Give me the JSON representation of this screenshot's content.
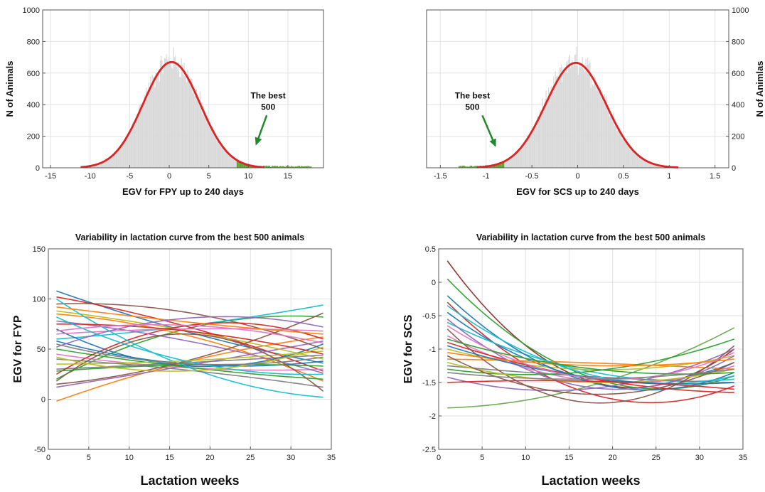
{
  "chart_data": [
    {
      "type": "bar",
      "xlabel": "EGV for FPY up to 240 days",
      "ylabel": "N of Animals",
      "xlim": [
        -16,
        19.5
      ],
      "ylim": [
        0,
        1000
      ],
      "xticks": [
        -15,
        -10,
        -5,
        0,
        5,
        10,
        15
      ],
      "yticks": [
        0,
        200,
        400,
        600,
        800,
        1000
      ],
      "grid": true,
      "histogram_range": [
        -11,
        18
      ],
      "normal_curve": {
        "mean": 0.3,
        "sd": 3.6,
        "peak": 670,
        "x_range": [
          -11.2,
          12
        ],
        "color": "#dd2222"
      },
      "highlight": {
        "x_range": [
          8.5,
          18
        ],
        "color": "#5aa02c"
      },
      "annotation": {
        "lines": [
          "The best",
          "500"
        ],
        "x": 12.5,
        "y": 440,
        "arrow_to": [
          11,
          150
        ],
        "arrow_color": "#1e8a2a"
      },
      "y_axis_side": "left",
      "colors": {
        "bars": "#d9d9d9",
        "curve": "#dd2222",
        "best": "#5aa02c"
      }
    },
    {
      "type": "bar",
      "xlabel": "EGV for SCS up to 240 days",
      "ylabel": "N of Animlas",
      "xlim": [
        -1.65,
        1.65
      ],
      "ylim": [
        0,
        1000
      ],
      "xticks": [
        -1.5,
        -1,
        -0.5,
        0,
        0.5,
        1,
        1.5
      ],
      "yticks": [
        0,
        200,
        400,
        600,
        800,
        1000
      ],
      "grid": true,
      "histogram_range": [
        -1.3,
        1.1
      ],
      "normal_curve": {
        "mean": -0.02,
        "sd": 0.33,
        "peak": 665,
        "x_range": [
          -1.1,
          1.1
        ],
        "color": "#dd2222"
      },
      "highlight": {
        "x_range": [
          -1.3,
          -0.8
        ],
        "color": "#5aa02c"
      },
      "annotation": {
        "lines": [
          "The best",
          "500"
        ],
        "x": -1.15,
        "y": 440,
        "arrow_to": [
          -0.9,
          140
        ],
        "arrow_color": "#1e8a2a"
      },
      "y_axis_side": "right",
      "colors": {
        "bars": "#d9d9d9",
        "curve": "#dd2222",
        "best": "#5aa02c"
      }
    },
    {
      "type": "line",
      "title": "Variability  in lactation curve from the best 500 animals",
      "xlabel": "Lactation weeks",
      "ylabel": "EGV for FYP",
      "xlim": [
        0,
        35
      ],
      "ylim": [
        -50,
        150
      ],
      "xticks": [
        0,
        5,
        10,
        15,
        20,
        25,
        30,
        35
      ],
      "yticks": [
        -50,
        0,
        50,
        100,
        150
      ],
      "grid": true,
      "x_range": [
        1,
        34
      ],
      "series": [
        {
          "color": "#1f77b4",
          "points": [
            [
              1,
              108
            ],
            [
              16,
              70
            ],
            [
              34,
              36
            ]
          ]
        },
        {
          "color": "#ff7f0e",
          "points": [
            [
              1,
              -2
            ],
            [
              16,
              35
            ],
            [
              34,
              62
            ]
          ]
        },
        {
          "color": "#2ca02c",
          "points": [
            [
              1,
              20
            ],
            [
              16,
              68
            ],
            [
              34,
              82
            ]
          ]
        },
        {
          "color": "#d62728",
          "points": [
            [
              1,
              102
            ],
            [
              16,
              75
            ],
            [
              34,
              28
            ]
          ]
        },
        {
          "color": "#9467bd",
          "points": [
            [
              1,
              12
            ],
            [
              16,
              32
            ],
            [
              34,
              58
            ]
          ]
        },
        {
          "color": "#8c564b",
          "points": [
            [
              1,
              95
            ],
            [
              16,
              88
            ],
            [
              34,
              50
            ]
          ]
        },
        {
          "color": "#17becf",
          "points": [
            [
              1,
              60
            ],
            [
              16,
              72
            ],
            [
              34,
              94
            ]
          ]
        },
        {
          "color": "#bcbd22",
          "points": [
            [
              1,
              88
            ],
            [
              16,
              70
            ],
            [
              34,
              40
            ]
          ]
        },
        {
          "color": "#e377c2",
          "points": [
            [
              1,
              45
            ],
            [
              16,
              32
            ],
            [
              34,
              30
            ]
          ]
        },
        {
          "color": "#7f7f7f",
          "points": [
            [
              1,
              30
            ],
            [
              16,
              36
            ],
            [
              34,
              44
            ]
          ]
        },
        {
          "color": "#1f77b4",
          "points": [
            [
              1,
              70
            ],
            [
              16,
              34
            ],
            [
              34,
              55
            ]
          ]
        },
        {
          "color": "#ff7f0e",
          "points": [
            [
              1,
              85
            ],
            [
              16,
              66
            ],
            [
              34,
              18
            ]
          ]
        },
        {
          "color": "#2ca02c",
          "points": [
            [
              1,
              50
            ],
            [
              16,
              33
            ],
            [
              34,
              20
            ]
          ]
        },
        {
          "color": "#d62728",
          "points": [
            [
              1,
              25
            ],
            [
              16,
              72
            ],
            [
              34,
              60
            ]
          ]
        },
        {
          "color": "#9467bd",
          "points": [
            [
              1,
              78
            ],
            [
              16,
              60
            ],
            [
              34,
              26
            ]
          ]
        },
        {
          "color": "#8c564b",
          "points": [
            [
              1,
              15
            ],
            [
              16,
              36
            ],
            [
              34,
              86
            ]
          ]
        },
        {
          "color": "#17becf",
          "points": [
            [
              1,
              100
            ],
            [
              16,
              36
            ],
            [
              34,
              2
            ]
          ]
        },
        {
          "color": "#bcbd22",
          "points": [
            [
              1,
              35
            ],
            [
              16,
              38
            ],
            [
              34,
              48
            ]
          ]
        },
        {
          "color": "#e377c2",
          "points": [
            [
              1,
              65
            ],
            [
              16,
              70
            ],
            [
              34,
              68
            ]
          ]
        },
        {
          "color": "#7f7f7f",
          "points": [
            [
              1,
              40
            ],
            [
              16,
              30
            ],
            [
              34,
              12
            ]
          ]
        },
        {
          "color": "#1f77b4",
          "points": [
            [
              1,
              58
            ],
            [
              16,
              36
            ],
            [
              34,
              38
            ]
          ]
        },
        {
          "color": "#ff7f0e",
          "points": [
            [
              1,
              92
            ],
            [
              16,
              78
            ],
            [
              34,
              65
            ]
          ]
        },
        {
          "color": "#2ca02c",
          "points": [
            [
              1,
              28
            ],
            [
              16,
              34
            ],
            [
              34,
              33
            ]
          ]
        },
        {
          "color": "#d62728",
          "points": [
            [
              1,
              75
            ],
            [
              16,
              69
            ],
            [
              34,
              45
            ]
          ]
        },
        {
          "color": "#9467bd",
          "points": [
            [
              1,
              52
            ],
            [
              16,
              80
            ],
            [
              34,
              72
            ]
          ]
        },
        {
          "color": "#8c564b",
          "points": [
            [
              1,
              18
            ],
            [
              16,
              65
            ],
            [
              34,
              8
            ]
          ]
        },
        {
          "color": "#17becf",
          "points": [
            [
              1,
              82
            ],
            [
              16,
              40
            ],
            [
              34,
              25
            ]
          ]
        },
        {
          "color": "#bcbd22",
          "points": [
            [
              1,
              42
            ],
            [
              16,
              28
            ],
            [
              34,
              52
            ]
          ]
        },
        {
          "color": "#e377c2",
          "points": [
            [
              1,
              68
            ],
            [
              16,
              74
            ],
            [
              34,
              56
            ]
          ]
        },
        {
          "color": "#7f7f7f",
          "points": [
            [
              1,
              55
            ],
            [
              16,
              36
            ],
            [
              34,
              42
            ]
          ]
        }
      ]
    },
    {
      "type": "line",
      "title": "Variability  in lactation curve from the best 500 animals",
      "xlabel": "Lactation weeks",
      "ylabel": "EGV for SCS",
      "xlim": [
        0,
        35
      ],
      "ylim": [
        -2.5,
        0.5
      ],
      "xticks": [
        0,
        5,
        10,
        15,
        20,
        25,
        30,
        35
      ],
      "yticks": [
        -2.5,
        -2,
        -1.5,
        -1,
        -0.5,
        0,
        0.5
      ],
      "grid": true,
      "x_range": [
        1,
        34
      ],
      "series": [
        {
          "color": "#8c2d2d",
          "points": [
            [
              1,
              0.32
            ],
            [
              18,
              -1.5
            ],
            [
              34,
              -1.0
            ]
          ]
        },
        {
          "color": "#2ca02c",
          "points": [
            [
              1,
              0.05
            ],
            [
              16,
              -1.35
            ],
            [
              34,
              -1.4
            ]
          ]
        },
        {
          "color": "#d62728",
          "points": [
            [
              1,
              -0.3
            ],
            [
              25,
              -1.8
            ],
            [
              34,
              -1.55
            ]
          ]
        },
        {
          "color": "#6aa84f",
          "points": [
            [
              1,
              -1.88
            ],
            [
              20,
              -1.45
            ],
            [
              34,
              -0.68
            ]
          ]
        },
        {
          "color": "#1f77b4",
          "points": [
            [
              1,
              -0.45
            ],
            [
              18,
              -1.45
            ],
            [
              34,
              -1.2
            ]
          ]
        },
        {
          "color": "#ff7f0e",
          "points": [
            [
              1,
              -1.15
            ],
            [
              16,
              -1.2
            ],
            [
              34,
              -1.3
            ]
          ]
        },
        {
          "color": "#9467bd",
          "points": [
            [
              1,
              -1.42
            ],
            [
              20,
              -1.55
            ],
            [
              34,
              -1.0
            ]
          ]
        },
        {
          "color": "#17becf",
          "points": [
            [
              1,
              -0.6
            ],
            [
              18,
              -1.35
            ],
            [
              34,
              -1.45
            ]
          ]
        },
        {
          "color": "#bcbd22",
          "points": [
            [
              1,
              -1.0
            ],
            [
              16,
              -1.3
            ],
            [
              34,
              -1.1
            ]
          ]
        },
        {
          "color": "#e377c2",
          "points": [
            [
              1,
              -0.8
            ],
            [
              20,
              -1.5
            ],
            [
              34,
              -1.25
            ]
          ]
        },
        {
          "color": "#7f7f7f",
          "points": [
            [
              1,
              -1.25
            ],
            [
              16,
              -1.4
            ],
            [
              34,
              -1.5
            ]
          ]
        },
        {
          "color": "#1f77b4",
          "points": [
            [
              1,
              -0.2
            ],
            [
              22,
              -1.6
            ],
            [
              34,
              -1.35
            ]
          ]
        },
        {
          "color": "#d62728",
          "points": [
            [
              1,
              -0.9
            ],
            [
              18,
              -1.45
            ],
            [
              34,
              -1.65
            ]
          ]
        },
        {
          "color": "#8c564b",
          "points": [
            [
              1,
              -0.7
            ],
            [
              24,
              -1.7
            ],
            [
              34,
              -0.95
            ]
          ]
        },
        {
          "color": "#2ca02c",
          "points": [
            [
              1,
              -1.3
            ],
            [
              16,
              -1.35
            ],
            [
              34,
              -0.85
            ]
          ]
        },
        {
          "color": "#9467bd",
          "points": [
            [
              1,
              -0.55
            ],
            [
              20,
              -1.6
            ],
            [
              34,
              -1.1
            ]
          ]
        },
        {
          "color": "#ff7f0e",
          "points": [
            [
              1,
              -1.05
            ],
            [
              20,
              -1.25
            ],
            [
              34,
              -1.15
            ]
          ]
        },
        {
          "color": "#17becf",
          "points": [
            [
              1,
              -0.35
            ],
            [
              18,
              -1.4
            ],
            [
              34,
              -1.4
            ]
          ]
        },
        {
          "color": "#bcbd22",
          "points": [
            [
              1,
              -1.2
            ],
            [
              18,
              -1.5
            ],
            [
              34,
              -1.3
            ]
          ]
        },
        {
          "color": "#d62728",
          "points": [
            [
              1,
              -1.5
            ],
            [
              22,
              -1.5
            ],
            [
              34,
              -1.6
            ]
          ]
        },
        {
          "color": "#1f77b4",
          "points": [
            [
              1,
              -0.95
            ],
            [
              16,
              -1.4
            ],
            [
              34,
              -1.5
            ]
          ]
        },
        {
          "color": "#e377c2",
          "points": [
            [
              1,
              -0.65
            ],
            [
              20,
              -1.45
            ],
            [
              34,
              -1.05
            ]
          ]
        },
        {
          "color": "#8c564b",
          "points": [
            [
              1,
              -1.1
            ],
            [
              22,
              -1.65
            ],
            [
              34,
              -1.2
            ]
          ]
        },
        {
          "color": "#2ca02c",
          "points": [
            [
              1,
              -0.85
            ],
            [
              18,
              -1.3
            ],
            [
              34,
              -1.35
            ]
          ]
        },
        {
          "color": "#7f7f7f",
          "points": [
            [
              1,
              -1.35
            ],
            [
              16,
              -1.45
            ],
            [
              34,
              -1.3
            ]
          ]
        }
      ]
    }
  ]
}
